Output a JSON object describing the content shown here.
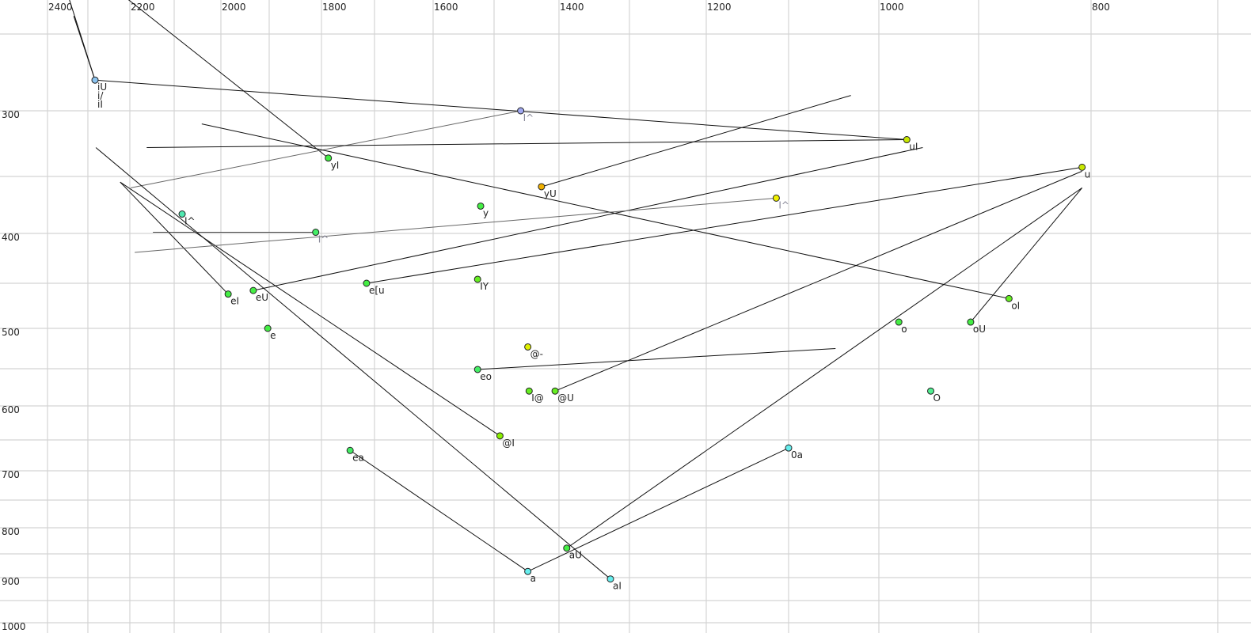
{
  "chart_data": {
    "type": "scatter",
    "title": "",
    "xlabel": "",
    "ylabel": "",
    "x_axis": {
      "position": "top",
      "reversed": true,
      "scale": "nonlinear",
      "ticks": [
        2400,
        2200,
        2000,
        1800,
        1600,
        1400,
        1200,
        1000,
        800
      ],
      "range": [
        2400,
        700
      ]
    },
    "y_axis": {
      "position": "left",
      "reversed": true,
      "scale": "nonlinear",
      "ticks": [
        300,
        400,
        500,
        600,
        700,
        800,
        900,
        1000
      ],
      "range": [
        250,
        1000
      ]
    },
    "grid": true,
    "points": [
      {
        "label": "iU",
        "x": 2283,
        "y": 280,
        "color": "#8cc4f0",
        "label_color": "#222222"
      },
      {
        "label": "i/",
        "x": 2283,
        "y": 280,
        "color": "#8cc4f0",
        "label_color": "#222222"
      },
      {
        "label": "iI",
        "x": 2283,
        "y": 280,
        "color": "#8cc4f0",
        "label_color": "#222222"
      },
      {
        "label": "I^",
        "x": 1459,
        "y": 300,
        "color": "#a0a8f0",
        "label_color": "#8a8a9a"
      },
      {
        "label": "uI",
        "x": 972,
        "y": 322,
        "color": "#c8e800",
        "label_color": "#222222"
      },
      {
        "label": "yI",
        "x": 1787,
        "y": 336,
        "color": "#44ee44",
        "label_color": "#222222"
      },
      {
        "label": "yU",
        "x": 1427,
        "y": 359,
        "color": "#f0b000",
        "label_color": "#222222"
      },
      {
        "label": "u",
        "x": 808,
        "y": 343,
        "color": "#c8e800",
        "label_color": "#222222"
      },
      {
        "label": "I^",
        "x": 1115,
        "y": 369,
        "color": "#f0f000",
        "label_color": "#8a8a9a"
      },
      {
        "label": "y",
        "x": 1522,
        "y": 376,
        "color": "#44ee44",
        "label_color": "#222222"
      },
      {
        "label": "I^",
        "x": 2083,
        "y": 383,
        "color": "#50e8b0",
        "label_color": "#222222"
      },
      {
        "label": "I^",
        "x": 1811,
        "y": 399,
        "color": "#44ee66",
        "label_color": "#8a8a9a"
      },
      {
        "label": "eI",
        "x": 1985,
        "y": 462,
        "color": "#44ee44",
        "label_color": "#222222"
      },
      {
        "label": "eU",
        "x": 1933,
        "y": 458,
        "color": "#44ee44",
        "label_color": "#222222"
      },
      {
        "label": "e[u",
        "x": 1715,
        "y": 450,
        "color": "#44ee44",
        "label_color": "#222222"
      },
      {
        "label": "IY",
        "x": 1527,
        "y": 446,
        "color": "#66ee22",
        "label_color": "#222222"
      },
      {
        "label": "e",
        "x": 1903,
        "y": 500,
        "color": "#44ee44",
        "label_color": "#222222"
      },
      {
        "label": "oI",
        "x": 873,
        "y": 467,
        "color": "#66ee22",
        "label_color": "#222222"
      },
      {
        "label": "o",
        "x": 980,
        "y": 493,
        "color": "#44ee44",
        "label_color": "#222222"
      },
      {
        "label": "oU",
        "x": 908,
        "y": 493,
        "color": "#44ee44",
        "label_color": "#222222"
      },
      {
        "label": "@-",
        "x": 1448,
        "y": 523,
        "color": "#e0f000",
        "label_color": "#222222"
      },
      {
        "label": "eo",
        "x": 1527,
        "y": 551,
        "color": "#44ee66",
        "label_color": "#222222"
      },
      {
        "label": "I@",
        "x": 1446,
        "y": 580,
        "color": "#66ee22",
        "label_color": "#222222"
      },
      {
        "label": "@U",
        "x": 1406,
        "y": 580,
        "color": "#66ee22",
        "label_color": "#222222"
      },
      {
        "label": "O",
        "x": 948,
        "y": 580,
        "color": "#50ee90",
        "label_color": "#222222"
      },
      {
        "label": "@I",
        "x": 1491,
        "y": 644,
        "color": "#88ee00",
        "label_color": "#222222"
      },
      {
        "label": "ea",
        "x": 1746,
        "y": 667,
        "color": "#44ee66",
        "label_color": "#222222"
      },
      {
        "label": "0a",
        "x": 1100,
        "y": 663,
        "color": "#66eeee",
        "label_color": "#222222"
      },
      {
        "label": "aU",
        "x": 1389,
        "y": 839,
        "color": "#44ee44",
        "label_color": "#222222"
      },
      {
        "label": "a",
        "x": 1448,
        "y": 887,
        "color": "#66eeee",
        "label_color": "#222222"
      },
      {
        "label": "aI",
        "x": 1327,
        "y": 903,
        "color": "#66eeee",
        "label_color": "#222222"
      }
    ],
    "trajectories": [
      {
        "from": [
          2283,
          280
        ],
        "to": [
          2347,
          228
        ],
        "color": "#111111"
      },
      {
        "from": [
          2283,
          280
        ],
        "to": [
          2335,
          239
        ],
        "color": "#111111"
      },
      {
        "from": [
          2283,
          280
        ],
        "to": [
          972,
          322
        ],
        "color": "#111111"
      },
      {
        "from": [
          2208,
          228
        ],
        "to": [
          1787,
          336
        ],
        "color": "#111111"
      },
      {
        "from": [
          1459,
          300
        ],
        "to": [
          2198,
          360
        ],
        "color": "#666666"
      },
      {
        "from": [
          2162,
          328
        ],
        "to": [
          972,
          322
        ],
        "color": "#111111"
      },
      {
        "from": [
          2041,
          310
        ],
        "to": [
          873,
          467
        ],
        "color": "#111111"
      },
      {
        "from": [
          1427,
          359
        ],
        "to": [
          1031,
          290
        ],
        "color": "#111111"
      },
      {
        "from": [
          1933,
          458
        ],
        "to": [
          956,
          328
        ],
        "color": "#111111"
      },
      {
        "from": [
          1715,
          450
        ],
        "to": [
          808,
          343
        ],
        "color": "#111111"
      },
      {
        "from": [
          2223,
          355
        ],
        "to": [
          1985,
          462
        ],
        "color": "#111111"
      },
      {
        "from": [
          2223,
          355
        ],
        "to": [
          1491,
          644
        ],
        "color": "#111111"
      },
      {
        "from": [
          2281,
          328
        ],
        "to": [
          1327,
          903
        ],
        "color": "#111111"
      },
      {
        "from": [
          2148,
          399
        ],
        "to": [
          1811,
          399
        ],
        "color": "#444444"
      },
      {
        "from": [
          2189,
          419
        ],
        "to": [
          1115,
          369
        ],
        "color": "#666666"
      },
      {
        "from": [
          1527,
          551
        ],
        "to": [
          1048,
          525
        ],
        "color": "#111111"
      },
      {
        "from": [
          1406,
          580
        ],
        "to": [
          808,
          346
        ],
        "color": "#111111"
      },
      {
        "from": [
          1389,
          839
        ],
        "to": [
          808,
          360
        ],
        "color": "#111111"
      },
      {
        "from": [
          908,
          493
        ],
        "to": [
          808,
          360
        ],
        "color": "#111111"
      },
      {
        "from": [
          1746,
          667
        ],
        "to": [
          1448,
          887
        ],
        "color": "#111111"
      },
      {
        "from": [
          1448,
          887
        ],
        "to": [
          1100,
          663
        ],
        "color": "#111111"
      }
    ]
  }
}
